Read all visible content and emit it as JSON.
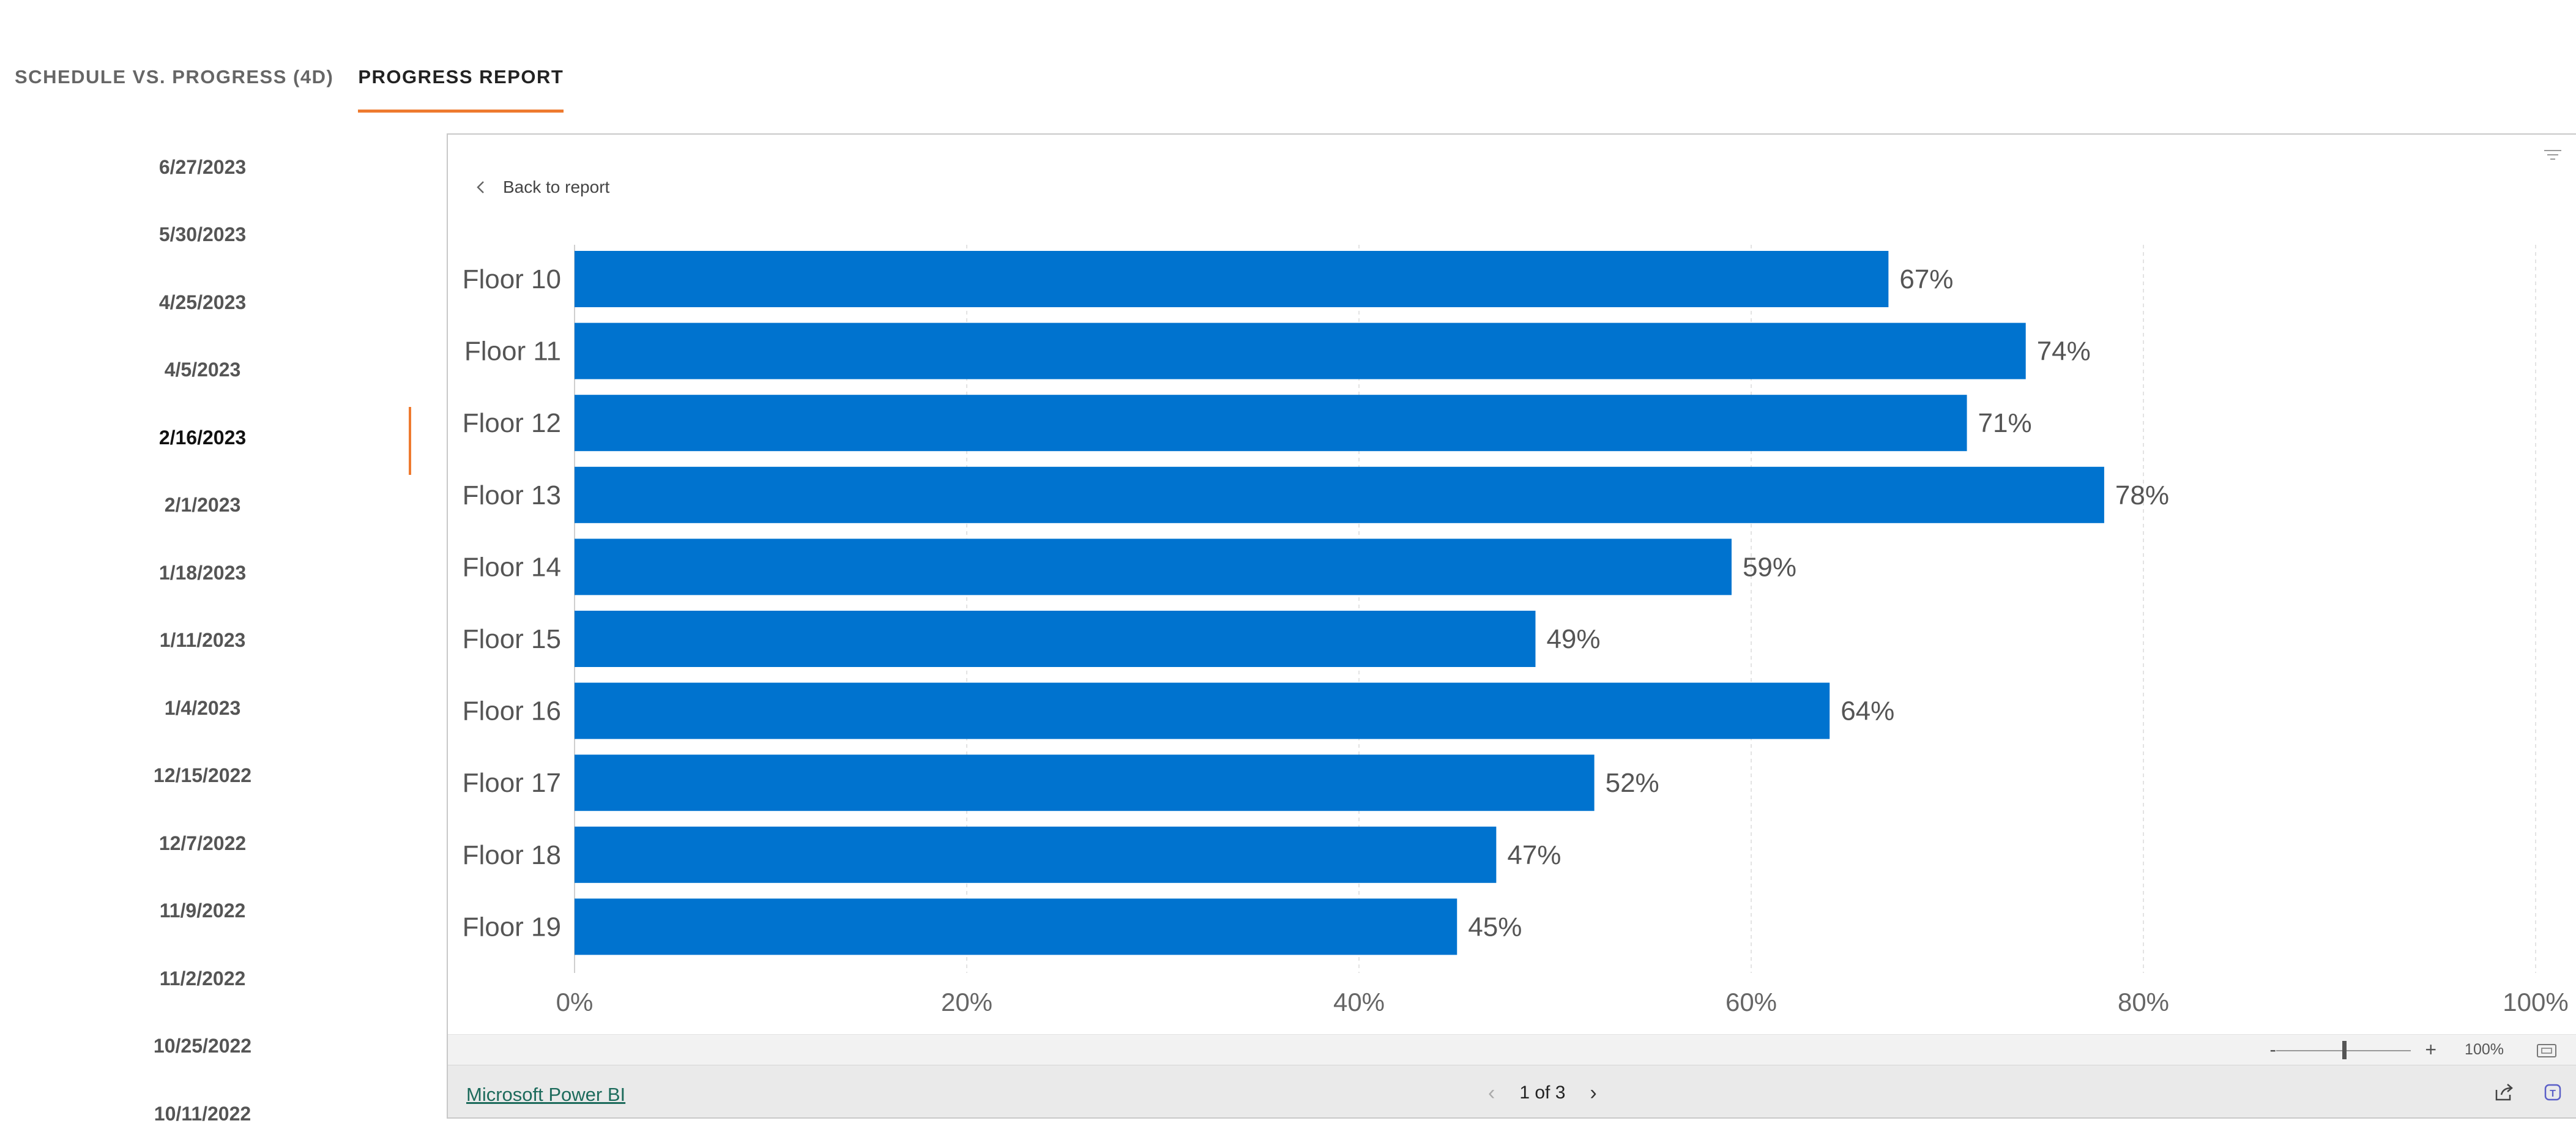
{
  "tabs": [
    {
      "label": "SCHEDULE VS. PROGRESS (4D)",
      "active": false
    },
    {
      "label": "PROGRESS REPORT",
      "active": true
    }
  ],
  "dates": [
    {
      "label": "6/27/2023",
      "active": false
    },
    {
      "label": "5/30/2023",
      "active": false
    },
    {
      "label": "4/25/2023",
      "active": false
    },
    {
      "label": "4/5/2023",
      "active": false
    },
    {
      "label": "2/16/2023",
      "active": true
    },
    {
      "label": "2/1/2023",
      "active": false
    },
    {
      "label": "1/18/2023",
      "active": false
    },
    {
      "label": "1/11/2023",
      "active": false
    },
    {
      "label": "1/4/2023",
      "active": false
    },
    {
      "label": "12/15/2022",
      "active": false
    },
    {
      "label": "12/7/2022",
      "active": false
    },
    {
      "label": "11/9/2022",
      "active": false
    },
    {
      "label": "11/2/2022",
      "active": false
    },
    {
      "label": "10/25/2022",
      "active": false
    },
    {
      "label": "10/11/2022",
      "active": false
    }
  ],
  "report": {
    "back_label": "Back to report",
    "zoom": {
      "minus": "-",
      "plus": "+",
      "level": "100%",
      "slider_value": 0.5
    },
    "footer": {
      "brand_link": "Microsoft Power BI",
      "page_label": "1 of 3"
    }
  },
  "chart_data": {
    "type": "bar",
    "orientation": "horizontal",
    "categories": [
      "Floor 10",
      "Floor 11",
      "Floor 12",
      "Floor 13",
      "Floor 14",
      "Floor 15",
      "Floor 16",
      "Floor 17",
      "Floor 18",
      "Floor 19"
    ],
    "values": [
      67,
      74,
      71,
      78,
      59,
      49,
      64,
      52,
      47,
      45
    ],
    "data_labels": [
      "67%",
      "74%",
      "71%",
      "78%",
      "59%",
      "49%",
      "64%",
      "52%",
      "47%",
      "45%"
    ],
    "xticks": [
      "0%",
      "20%",
      "40%",
      "60%",
      "80%",
      "100%"
    ],
    "xlim": [
      0,
      100
    ],
    "grid": "vertical dashed",
    "bar_color": "#0073cf"
  },
  "colors": {
    "accent": "#ee7a2f",
    "bar": "#0073cf"
  }
}
